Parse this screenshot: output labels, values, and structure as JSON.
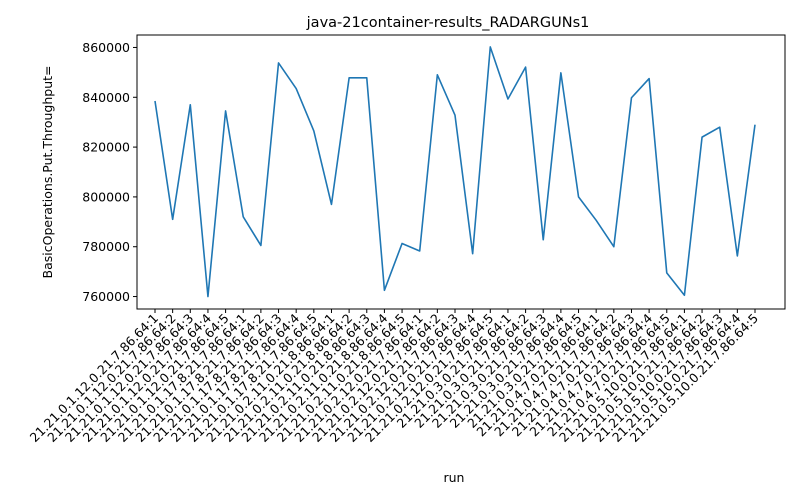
{
  "chart_data": {
    "type": "line",
    "title": "java-21container-results_RADARGUNs1",
    "xlabel": "run",
    "ylabel": "BasicOperations.Put.Throughput=",
    "ylim": [
      755000,
      865000
    ],
    "yticks": [
      760000,
      780000,
      800000,
      820000,
      840000,
      860000
    ],
    "grid": false,
    "line_color": "#1f77b4",
    "categories": [
      "21.21.0.1.12.0.21.7.86.64:1",
      "21.21.0.1.12.0.21.7.86.64:2",
      "21.21.0.1.12.0.21.7.86.64:3",
      "21.21.0.1.12.0.21.7.86.64:4",
      "21.21.0.1.12.0.21.7.86.64:5",
      "21.21.0.1.17.8.21.7.86.64:1",
      "21.21.0.1.17.8.21.7.86.64:2",
      "21.21.0.1.17.8.21.7.86.64:3",
      "21.21.0.1.17.8.21.7.86.64:4",
      "21.21.0.1.17.8.21.7.86.64:5",
      "21.21.0.2.11.0.21.8.86.64:1",
      "21.21.0.2.11.0.21.8.86.64:2",
      "21.21.0.2.11.0.21.8.86.64:3",
      "21.21.0.2.11.0.21.8.86.64:4",
      "21.21.0.2.11.0.21.8.86.64:5",
      "21.21.0.2.12.0.21.7.86.64:1",
      "21.21.0.2.12.0.21.7.86.64:2",
      "21.21.0.2.12.0.21.7.86.64:3",
      "21.21.0.2.12.0.21.7.86.64:4",
      "21.21.0.2.12.0.21.7.86.64:5",
      "21.21.0.3.0.21.7.86.64:1",
      "21.21.0.3.0.21.7.86.64:2",
      "21.21.0.3.0.21.7.86.64:3",
      "21.21.0.3.0.21.7.86.64:4",
      "21.21.0.3.0.21.7.86.64:5",
      "21.21.0.4.7.0.21.7.86.64:1",
      "21.21.0.4.7.0.21.7.86.64:2",
      "21.21.0.4.7.0.21.7.86.64:3",
      "21.21.0.4.7.0.21.7.86.64:4",
      "21.21.0.4.7.0.21.7.86.64:5",
      "21.21.0.5.10.0.21.7.86.64:1",
      "21.21.0.5.10.0.21.7.86.64:2",
      "21.21.0.5.10.0.21.7.86.64:3",
      "21.21.0.5.10.0.21.7.86.64:4",
      "21.21.0.5.10.0.21.7.86.64:5"
    ],
    "values": [
      838500,
      791000,
      837000,
      760000,
      834500,
      792000,
      780500,
      853800,
      843500,
      826500,
      797000,
      847800,
      847800,
      762500,
      781300,
      778300,
      849000,
      832800,
      777200,
      860200,
      839300,
      852100,
      782800,
      849800,
      800000,
      790600,
      780000,
      839800,
      847500,
      769500,
      760500,
      824000,
      828000,
      776300,
      829000
    ]
  }
}
